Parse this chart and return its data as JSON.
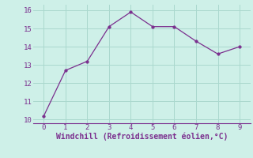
{
  "x": [
    0,
    1,
    2,
    3,
    4,
    5,
    6,
    7,
    8,
    9
  ],
  "y": [
    10.2,
    12.7,
    13.2,
    15.1,
    15.9,
    15.1,
    15.1,
    14.3,
    13.6,
    14.0
  ],
  "line_color": "#7b2f8e",
  "marker_color": "#7b2f8e",
  "bg_color": "#cef0e8",
  "grid_color": "#aad8ce",
  "xlabel": "Windchill (Refroidissement éolien,°C)",
  "xlabel_color": "#7b2f8e",
  "xlabel_fontsize": 7,
  "tick_color": "#7b2f8e",
  "tick_fontsize": 6.5,
  "xlim": [
    -0.5,
    9.5
  ],
  "ylim": [
    9.8,
    16.3
  ],
  "yticks": [
    10,
    11,
    12,
    13,
    14,
    15,
    16
  ],
  "xticks": [
    0,
    1,
    2,
    3,
    4,
    5,
    6,
    7,
    8,
    9
  ],
  "axis_line_color": "#7b2f8e"
}
